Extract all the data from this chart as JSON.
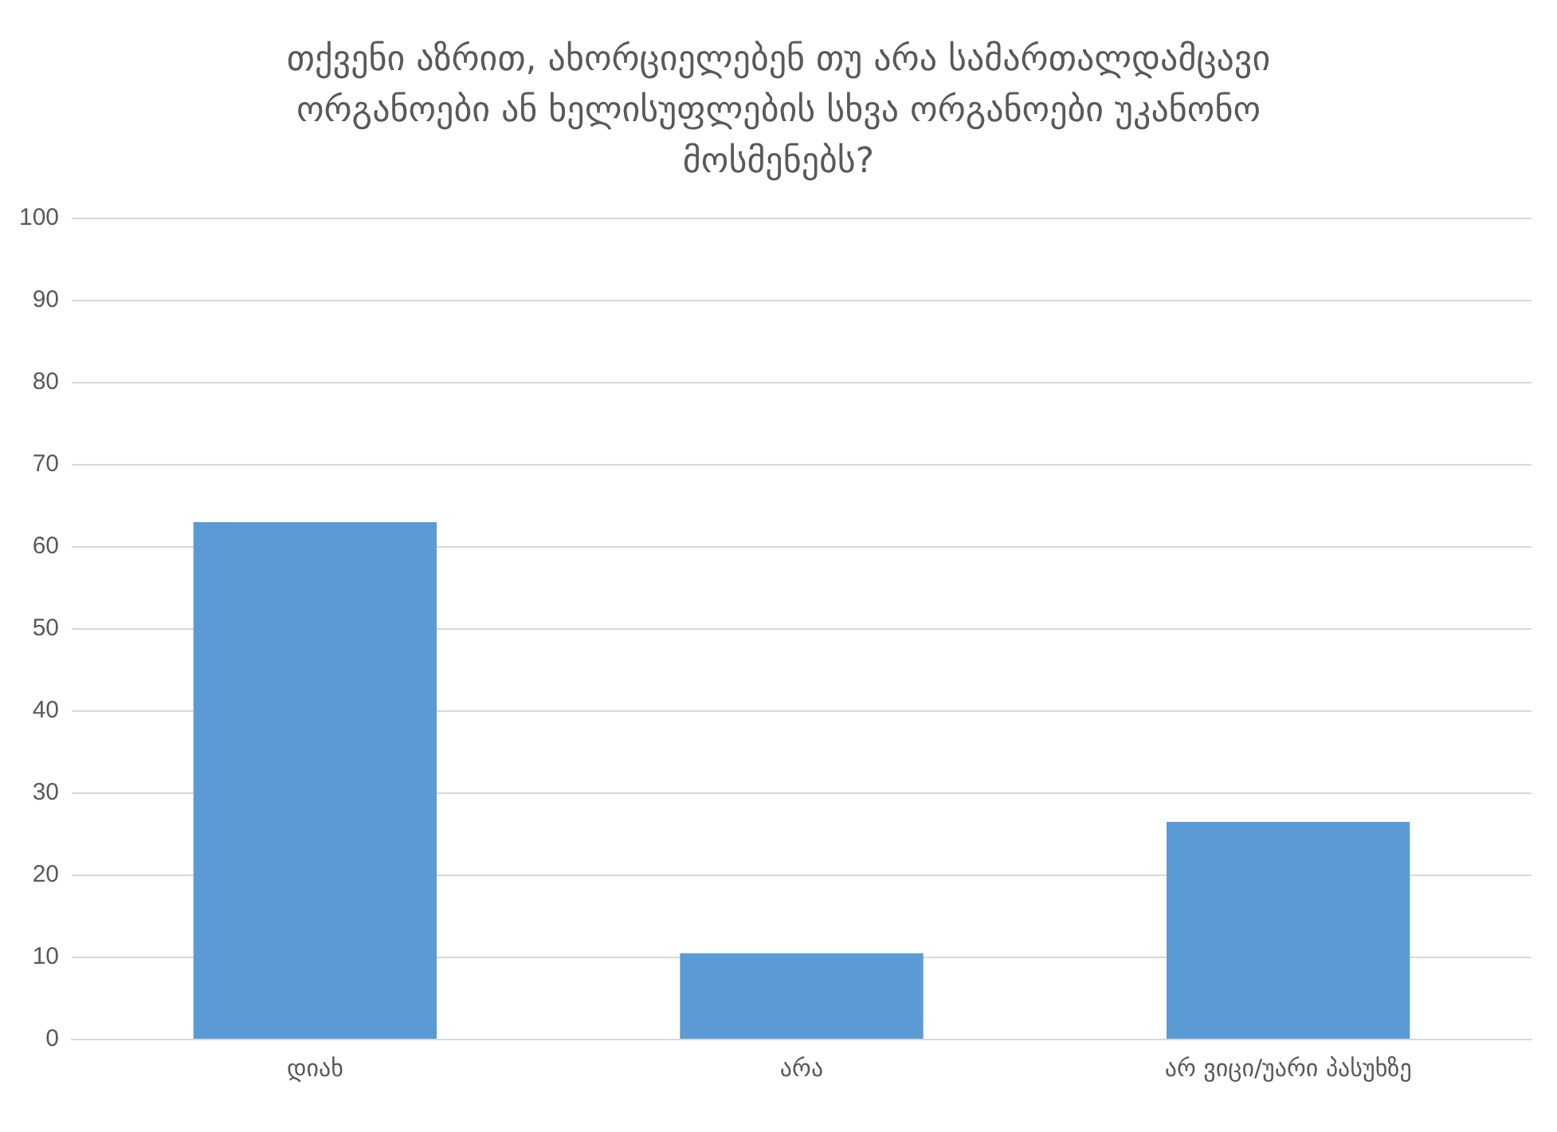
{
  "chart_data": {
    "type": "bar",
    "title": "თქვენი აზრით, ახორციელებენ თუ არა სამართალდამცავი ორგანოები ან ხელისუფლების სხვა ორგანოები უკანონო მოსმენებს?",
    "categories": [
      "დიახ",
      "არა",
      "არ ვიცი/უარი პასუხზე"
    ],
    "values": [
      63,
      10.5,
      26.5
    ],
    "color": "#5b9bd5",
    "ylim": [
      0,
      100
    ],
    "yticks": [
      0,
      10,
      20,
      30,
      40,
      50,
      60,
      70,
      80,
      90,
      100
    ],
    "grid": "y"
  }
}
